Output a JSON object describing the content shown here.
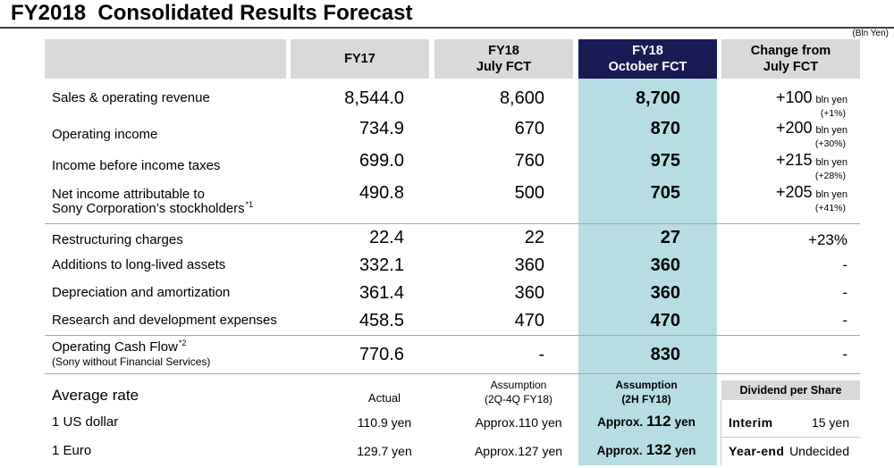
{
  "title": "FY2018  Consolidated Results Forecast",
  "unit_note": "(Bln Yen)",
  "colors": {
    "header_gray": "#d9d9d9",
    "highlight_header": "#1a1a55",
    "highlight_header_text": "#ffffff",
    "highlight_column": "#b6dde3",
    "rule": "#404040",
    "separator": "#a6a6a6",
    "text": "#000000"
  },
  "header": {
    "fy17": "FY17",
    "july_fct": [
      "FY18",
      "July FCT"
    ],
    "october_fct": [
      "FY18",
      "October FCT"
    ],
    "change": [
      "Change from",
      "July FCT"
    ]
  },
  "rows": [
    {
      "label": [
        "Sales & operating revenue"
      ],
      "fy17": "8,544.0",
      "july_fct": "8,600",
      "october_fct": "8,700",
      "change": {
        "amount": "+100",
        "unit": "bln yen",
        "percent": "(+1%)"
      }
    },
    {
      "label": [
        "Operating income"
      ],
      "fy17": "734.9",
      "july_fct": "670",
      "october_fct": "870",
      "change": {
        "amount": "+200",
        "unit": "bln yen",
        "percent": "(+30%)"
      }
    },
    {
      "label": [
        "Income before income taxes"
      ],
      "fy17": "699.0",
      "july_fct": "760",
      "october_fct": "975",
      "change": {
        "amount": "+215",
        "unit": "bln yen",
        "percent": "(+28%)"
      }
    },
    {
      "label": [
        "Net income attributable to",
        "Sony Corporation’s stockholders"
      ],
      "footnote": "*1",
      "fy17": "490.8",
      "july_fct": "500",
      "october_fct": "705",
      "change": {
        "amount": "+205",
        "unit": "bln yen",
        "percent": "(+41%)"
      }
    },
    {
      "label": [
        "Restructuring charges"
      ],
      "fy17": "22.4",
      "july_fct": "22",
      "october_fct": "27",
      "change": {
        "amount": "+23%"
      }
    },
    {
      "label": [
        "Additions to long-lived assets"
      ],
      "fy17": "332.1",
      "july_fct": "360",
      "october_fct": "360",
      "change": {
        "amount": "-"
      }
    },
    {
      "label": [
        "Depreciation and amortization"
      ],
      "fy17": "361.4",
      "july_fct": "360",
      "october_fct": "360",
      "change": {
        "amount": "-"
      }
    },
    {
      "label": [
        "Research and development expenses"
      ],
      "fy17": "458.5",
      "july_fct": "470",
      "october_fct": "470",
      "change": {
        "amount": "-"
      }
    },
    {
      "label": [
        "Operating Cash Flow",
        "(Sony without Financial Services)"
      ],
      "footnote": "*2",
      "fy17": "770.6",
      "july_fct": "-",
      "october_fct": "830",
      "change": {
        "amount": "-"
      }
    }
  ],
  "exchange_rates": {
    "heading": "Average rate",
    "actual_label": "Actual",
    "july_label": [
      "Assumption",
      "(2Q-4Q FY18)"
    ],
    "october_label": [
      "Assumption",
      "(2H FY18)"
    ],
    "items": [
      {
        "label": "1 US dollar",
        "actual": "110.9 yen",
        "july_fct": "Approx.110 yen",
        "october_fct": {
          "prefix": "Approx.",
          "value": "112",
          "unit": "yen"
        }
      },
      {
        "label": "1 Euro",
        "actual": "129.7 yen",
        "july_fct": "Approx.127 yen",
        "october_fct": {
          "prefix": "Approx.",
          "value": "132",
          "unit": "yen"
        }
      }
    ]
  },
  "dividend": {
    "heading": "Dividend per Share",
    "items": [
      {
        "label": "Interim",
        "value": "15 yen"
      },
      {
        "label": "Year-end",
        "value": "Undecided"
      }
    ]
  }
}
